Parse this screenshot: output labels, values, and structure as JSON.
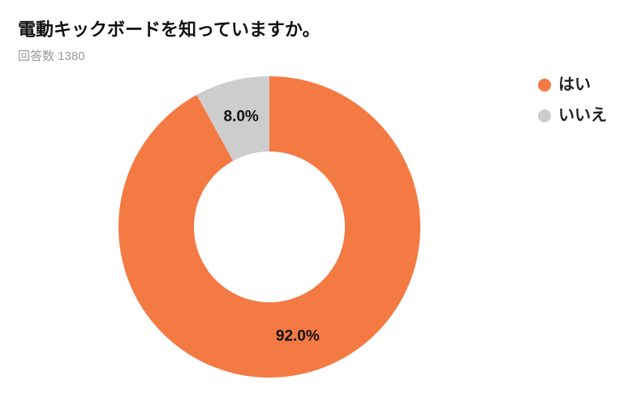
{
  "chart_data": {
    "type": "donut",
    "title": "電動キックボードを知っていますか。",
    "subtitle": "回答数 1380",
    "categories": [
      "はい",
      "いいえ"
    ],
    "values": [
      92.0,
      8.0
    ],
    "value_labels": [
      "92.0%",
      "8.0%"
    ],
    "colors": [
      "#f47a44",
      "#cdcdcd"
    ],
    "legend": "top-right"
  }
}
